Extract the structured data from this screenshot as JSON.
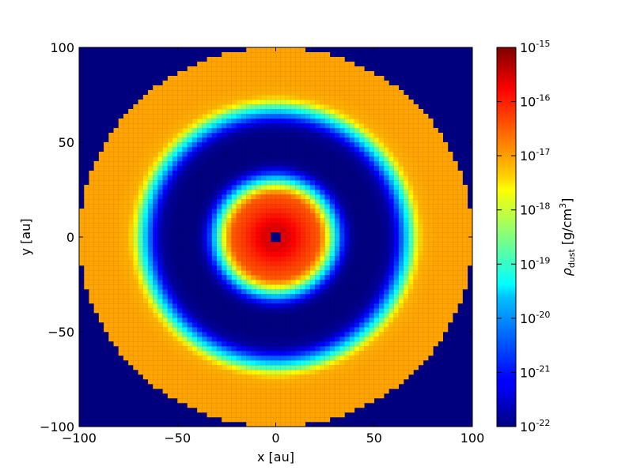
{
  "chart_data": {
    "type": "heatmap",
    "title": "",
    "xlabel": "x [au]",
    "ylabel": "y [au]",
    "xlim": [
      -100,
      100
    ],
    "ylim": [
      -100,
      100
    ],
    "xticks": [
      -100,
      -50,
      0,
      50,
      100
    ],
    "yticks": [
      -100,
      -50,
      0,
      50,
      100
    ],
    "xtick_labels": [
      "−100",
      "−50",
      "0",
      "50",
      "100"
    ],
    "ytick_labels": [
      "−100",
      "−50",
      "0",
      "50",
      "100"
    ],
    "grid": false,
    "colormap": "jet",
    "colorbar": {
      "label_symbol": "ρ",
      "label_subscript": "dust",
      "label_unit_open": " [g/cm",
      "label_unit_sup": "3",
      "label_unit_close": "]",
      "scale": "log",
      "range_exponents": [
        -22,
        -15
      ],
      "tick_base": "10",
      "tick_exponents": [
        "-15",
        "-16",
        "-17",
        "-18",
        "-19",
        "-20",
        "-21",
        "-22"
      ]
    },
    "field": {
      "description_units": "log10 dust density [g/cm^3] vs radius r [au]",
      "outer_radius": 100,
      "background_log_rho": -22,
      "profile_r": [
        0,
        2.5,
        4,
        8,
        15,
        22,
        25,
        27,
        30,
        34,
        38,
        42,
        46,
        52,
        58,
        62,
        66,
        70,
        72,
        75,
        78,
        82,
        90,
        100
      ],
      "profile_log": [
        -22,
        -22,
        -15.5,
        -15.8,
        -16.2,
        -16.5,
        -17.2,
        -18,
        -19.3,
        -20.8,
        -21.8,
        -22,
        -22,
        -22,
        -21.8,
        -21,
        -19.8,
        -18.5,
        -17.6,
        -17.1,
        -17.05,
        -17,
        -17,
        -17
      ]
    }
  }
}
